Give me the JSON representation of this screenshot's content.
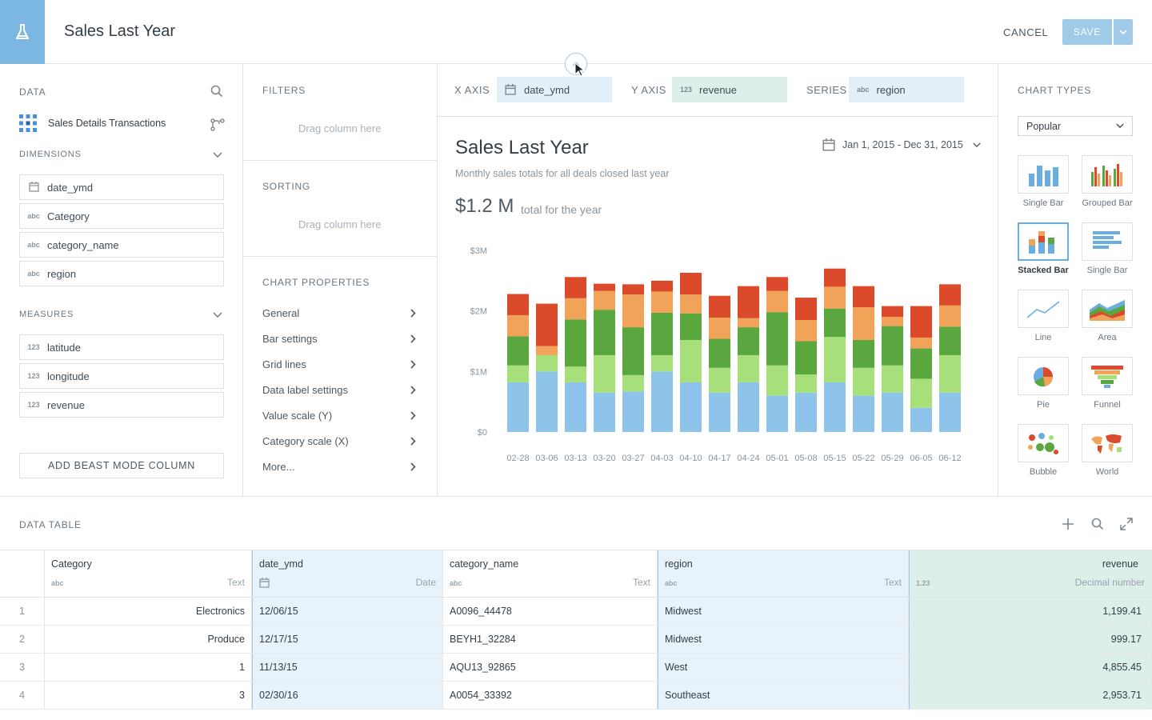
{
  "header": {
    "title": "Sales Last Year",
    "cancel": "CANCEL",
    "save": "SAVE",
    "logo_icon": "flask-icon"
  },
  "data_panel": {
    "title": "DATA",
    "source": "Sales Details Transactions",
    "dimensions_title": "DIMENSIONS",
    "dimensions": [
      {
        "type": "date",
        "name": "date_ymd"
      },
      {
        "type": "abc",
        "name": "Category"
      },
      {
        "type": "abc",
        "name": "category_name"
      },
      {
        "type": "abc",
        "name": "region"
      }
    ],
    "measures_title": "MEASURES",
    "measures": [
      {
        "type": "123",
        "name": "latitude"
      },
      {
        "type": "123",
        "name": "longitude"
      },
      {
        "type": "123",
        "name": "revenue"
      }
    ],
    "add_button": "ADD BEAST MODE COLUMN"
  },
  "filters": {
    "title": "FILTERS",
    "placeholder": "Drag column here"
  },
  "sorting": {
    "title": "SORTING",
    "placeholder": "Drag column here"
  },
  "chart_properties": {
    "title": "CHART PROPERTIES",
    "items": [
      "General",
      "Bar settings",
      "Grid lines",
      "Data label settings",
      "Value scale (Y)",
      "Category scale (X)",
      "More..."
    ]
  },
  "axes": {
    "x_label": "X AXIS",
    "x_value": "date_ymd",
    "y_label": "Y AXIS",
    "y_type": "123",
    "y_value": "revenue",
    "series_label": "SERIES",
    "series_type": "abc",
    "series_value": "region"
  },
  "card": {
    "title": "Sales Last Year",
    "date_range": "Jan 1, 2015 - Dec 31, 2015",
    "subtitle": "Monthly sales totals for all deals closed last year",
    "total": "$1.2 M",
    "total_note": "total for the year"
  },
  "chart_data": {
    "type": "bar",
    "stacked": true,
    "categories": [
      "02-28",
      "03-06",
      "03-13",
      "03-20",
      "03-27",
      "04-03",
      "04-10",
      "04-17",
      "04-24",
      "05-01",
      "05-08",
      "05-15",
      "05-22",
      "05-29",
      "06-05",
      "06-12"
    ],
    "y_ticks": [
      "$0",
      "$1M",
      "$2M",
      "$3M"
    ],
    "ylim": [
      0,
      3
    ],
    "series": [
      {
        "color": "#8ec4ea",
        "values": [
          0.82,
          1.0,
          0.82,
          0.65,
          0.67,
          1.0,
          0.82,
          0.65,
          0.82,
          0.6,
          0.65,
          0.82,
          0.6,
          0.65,
          0.4,
          0.65
        ]
      },
      {
        "color": "#a7df7a",
        "values": [
          0.28,
          0.27,
          0.26,
          0.62,
          0.27,
          0.27,
          0.7,
          0.41,
          0.45,
          0.5,
          0.3,
          0.75,
          0.46,
          0.45,
          0.48,
          0.62
        ]
      },
      {
        "color": "#5aa73f",
        "values": [
          0.48,
          0.0,
          0.78,
          0.75,
          0.79,
          0.7,
          0.44,
          0.48,
          0.46,
          0.88,
          0.55,
          0.47,
          0.46,
          0.65,
          0.5,
          0.47
        ]
      },
      {
        "color": "#f2a35a",
        "values": [
          0.35,
          0.15,
          0.35,
          0.31,
          0.54,
          0.35,
          0.31,
          0.35,
          0.15,
          0.35,
          0.35,
          0.36,
          0.54,
          0.15,
          0.18,
          0.35
        ]
      },
      {
        "color": "#db4b2b",
        "values": [
          0.35,
          0.7,
          0.35,
          0.12,
          0.17,
          0.18,
          0.36,
          0.36,
          0.53,
          0.23,
          0.37,
          0.3,
          0.35,
          0.18,
          0.52,
          0.35
        ]
      }
    ]
  },
  "chart_types": {
    "title": "CHART TYPES",
    "filter": "Popular",
    "items": [
      "Single Bar",
      "Grouped Bar",
      "Stacked Bar",
      "Single Bar",
      "Line",
      "Area",
      "Pie",
      "Funnel",
      "Bubble",
      "World"
    ],
    "selected": "Stacked Bar"
  },
  "data_table": {
    "title": "DATA TABLE",
    "columns": [
      {
        "name": "Category",
        "type": "abc",
        "type_label": "Text"
      },
      {
        "name": "date_ymd",
        "type": "date",
        "type_label": "Date"
      },
      {
        "name": "category_name",
        "type": "abc",
        "type_label": "Text"
      },
      {
        "name": "region",
        "type": "abc",
        "type_label": "Text"
      },
      {
        "name": "revenue",
        "type": "1.23",
        "type_label": "Decimal number"
      }
    ],
    "rows": [
      {
        "n": "1",
        "cells": [
          "Electronics",
          "12/06/15",
          "A0096_44478",
          "Midwest",
          "1,199.41"
        ]
      },
      {
        "n": "2",
        "cells": [
          "Produce",
          "12/17/15",
          "BEYH1_32284",
          "Midwest",
          "999.17"
        ]
      },
      {
        "n": "3",
        "cells": [
          "1",
          "11/13/15",
          "AQU13_92865",
          "West",
          "4,855.45"
        ]
      },
      {
        "n": "4",
        "cells": [
          "3",
          "02/30/16",
          "A0054_33392",
          "Southeast",
          "2,953.71"
        ]
      }
    ]
  }
}
